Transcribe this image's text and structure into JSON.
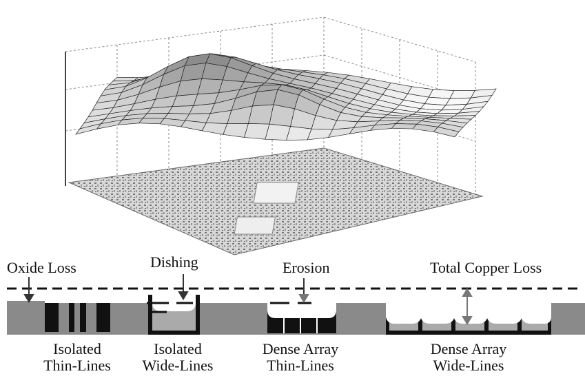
{
  "labels": {
    "oxide_loss": "Oxide Loss",
    "dishing": "Dishing",
    "erosion": "Erosion",
    "total_copper_loss": "Total Copper Loss"
  },
  "captions": [
    [
      "Isolated",
      "Thin-Lines"
    ],
    [
      "Isolated",
      "Wide-Lines"
    ],
    [
      "Dense Array",
      "Thin-Lines"
    ],
    [
      "Dense Array",
      "Wide-Lines"
    ]
  ]
}
